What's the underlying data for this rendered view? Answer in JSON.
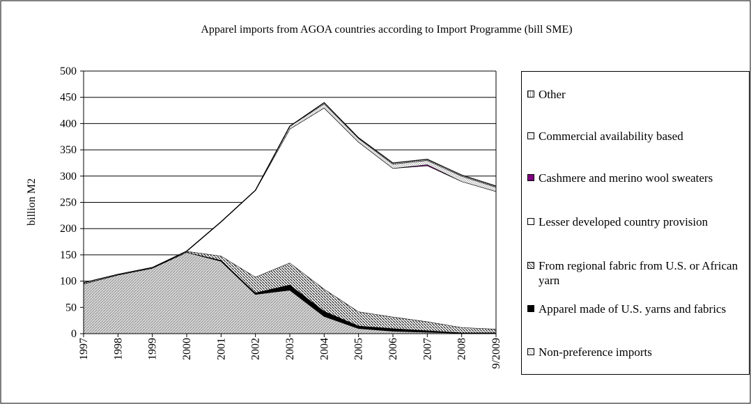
{
  "chart_data": {
    "type": "stacked_area",
    "title": "Apparel imports from AGOA countries according to Import Programme (bill SME)",
    "y_label": "billion M2",
    "categories": [
      "1997",
      "1998",
      "1999",
      "2000",
      "2001",
      "2002",
      "2003",
      "2004",
      "2005",
      "2006",
      "2007",
      "2008",
      "9/2009"
    ],
    "series": [
      {
        "name": "Non-preference imports",
        "color": "#c0c0c0",
        "pattern": "diagonal-light",
        "values": [
          95,
          112,
          125,
          155,
          138,
          75,
          83,
          33,
          10,
          5,
          3,
          1,
          1
        ]
      },
      {
        "name": "Apparel made of U.S. yarns and fabrics",
        "color": "#000000",
        "pattern": "solid",
        "values": [
          0,
          0,
          0,
          0,
          2,
          3,
          10,
          10,
          5,
          5,
          3,
          1,
          1
        ]
      },
      {
        "name": "From regional fabric from U.S. or African yarn",
        "color": "#606060",
        "pattern": "diagonal-dark",
        "values": [
          0,
          0,
          0,
          2,
          8,
          30,
          42,
          42,
          27,
          22,
          17,
          10,
          7
        ]
      },
      {
        "name": "Lesser developed country provision",
        "color": "#ffffff",
        "pattern": "solid",
        "values": [
          0,
          0,
          0,
          0,
          65,
          165,
          255,
          345,
          323,
          283,
          297,
          278,
          262
        ]
      },
      {
        "name": "Cashmere and merino wool sweaters",
        "color": "#800080",
        "pattern": "solid",
        "values": [
          0,
          0,
          0,
          0,
          0,
          0,
          0,
          0,
          0,
          0,
          2,
          0,
          0
        ]
      },
      {
        "name": "Commercial availability based",
        "color": "#d0d0d0",
        "pattern": "dots",
        "values": [
          0,
          0,
          0,
          0,
          0,
          0,
          5,
          8,
          7,
          8,
          8,
          10,
          8
        ]
      },
      {
        "name": "Other",
        "color": "#a0a0a0",
        "pattern": "vertical",
        "values": [
          2,
          1,
          1,
          0,
          0,
          0,
          0,
          2,
          1,
          2,
          2,
          2,
          2
        ]
      }
    ],
    "ylim": [
      0,
      500
    ],
    "yticks": [
      0,
      50,
      100,
      150,
      200,
      250,
      300,
      350,
      400,
      450,
      500
    ],
    "grid": true
  }
}
